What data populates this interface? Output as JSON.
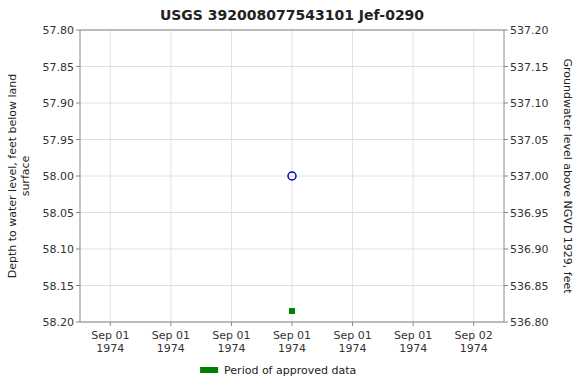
{
  "chart_data": {
    "type": "scatter",
    "title": "USGS 392008077543101  Jef-0290",
    "y_label": "Depth to water level, feet below land\nsurface",
    "y2_label": "Groundwater level above NGVD 1929, feet",
    "categories": [
      "Sep 01\n1974",
      "Sep 01\n1974",
      "Sep 01\n1974",
      "Sep 01\n1974",
      "Sep 01\n1974",
      "Sep 01\n1974",
      "Sep 02\n1974"
    ],
    "series": [
      {
        "color": "#0000cc",
        "marker": "open-circle",
        "values": [
          null,
          null,
          null,
          58.0,
          null,
          null,
          null
        ]
      },
      {
        "name": "Period of approved data",
        "color": "#008000",
        "marker": "square",
        "values": [
          null,
          null,
          null,
          58.185,
          null,
          null,
          null
        ]
      }
    ],
    "ylim": [
      58.2,
      57.8
    ],
    "yticks": [
      {
        "value": 57.8,
        "label": "57.80"
      },
      57.85,
      {
        "value": 57.9,
        "label": "57.90"
      },
      57.95,
      {
        "value": 58.0,
        "label": "58.00"
      },
      58.05,
      {
        "value": 58.1,
        "label": "58.10"
      },
      58.15,
      {
        "value": 58.2,
        "label": "58.20"
      }
    ],
    "y2lim": [
      536.8,
      537.2
    ],
    "y2ticks": [
      {
        "value": 537.2,
        "label": "537.20"
      },
      537.15,
      {
        "value": 537.1,
        "label": "537.10"
      },
      537.05,
      {
        "value": 537.0,
        "label": "537.00"
      },
      536.95,
      {
        "value": 536.9,
        "label": "536.90"
      },
      536.85,
      {
        "value": 536.8,
        "label": "536.80"
      }
    ],
    "grid": true,
    "legend": "bottom"
  }
}
